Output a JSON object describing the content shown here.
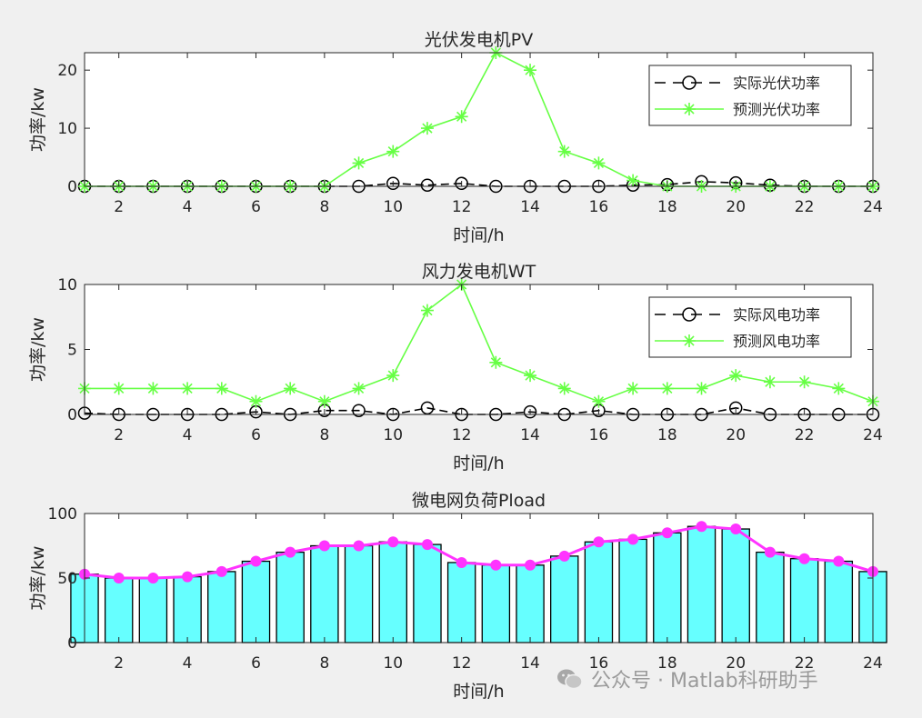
{
  "chart_data": [
    {
      "type": "line",
      "title": "光伏发电机PV",
      "xlabel": "时间/h",
      "ylabel": "功率/kw",
      "xlim": [
        1,
        24
      ],
      "ylim": [
        0,
        23
      ],
      "xticks": [
        2,
        4,
        6,
        8,
        10,
        12,
        14,
        16,
        18,
        20,
        22,
        24
      ],
      "yticks": [
        0,
        10,
        20
      ],
      "legend_position": "top-right",
      "x": [
        1,
        2,
        3,
        4,
        5,
        6,
        7,
        8,
        9,
        10,
        11,
        12,
        13,
        14,
        15,
        16,
        17,
        18,
        19,
        20,
        21,
        22,
        23,
        24
      ],
      "series": [
        {
          "name": "实际光伏功率",
          "color": "#000000",
          "marker": "circle",
          "dash": true,
          "values": [
            0,
            0,
            0,
            0,
            0,
            0,
            0,
            0,
            0,
            0.5,
            0.2,
            0.5,
            0,
            0,
            0,
            0,
            0.2,
            0.3,
            0.8,
            0.6,
            0.2,
            0,
            0,
            0
          ]
        },
        {
          "name": "预测光伏功率",
          "color": "#66ff44",
          "marker": "star",
          "dash": false,
          "values": [
            0,
            0,
            0,
            0,
            0,
            0,
            0,
            0,
            4,
            6,
            10,
            12,
            23,
            20,
            6,
            4,
            1,
            0,
            0,
            0,
            0,
            0,
            0,
            0
          ]
        }
      ]
    },
    {
      "type": "line",
      "title": "风力发电机WT",
      "xlabel": "时间/h",
      "ylabel": "功率/kw",
      "xlim": [
        1,
        24
      ],
      "ylim": [
        0,
        10
      ],
      "xticks": [
        2,
        4,
        6,
        8,
        10,
        12,
        14,
        16,
        18,
        20,
        22,
        24
      ],
      "yticks": [
        0,
        5,
        10
      ],
      "legend_position": "top-right",
      "x": [
        1,
        2,
        3,
        4,
        5,
        6,
        7,
        8,
        9,
        10,
        11,
        12,
        13,
        14,
        15,
        16,
        17,
        18,
        19,
        20,
        21,
        22,
        23,
        24
      ],
      "series": [
        {
          "name": "实际风电功率",
          "color": "#000000",
          "marker": "circle",
          "dash": true,
          "values": [
            0.1,
            0,
            0,
            0,
            0,
            0.2,
            0,
            0.3,
            0.3,
            0,
            0.5,
            0,
            0,
            0.2,
            0,
            0.3,
            0,
            0,
            0,
            0.5,
            0,
            0,
            0,
            0
          ]
        },
        {
          "name": "预测风电功率",
          "color": "#66ff44",
          "marker": "star",
          "dash": false,
          "values": [
            2,
            2,
            2,
            2,
            2,
            1,
            2,
            1,
            2,
            3,
            8,
            10,
            4,
            3,
            2,
            1,
            2,
            2,
            2,
            3,
            2.5,
            2.5,
            2,
            1
          ]
        }
      ]
    },
    {
      "type": "bar",
      "title": "微电网负荷Pload",
      "xlabel": "时间/h",
      "ylabel": "功率/kw",
      "xlim": [
        1,
        24
      ],
      "ylim": [
        0,
        100
      ],
      "xticks": [
        2,
        4,
        6,
        8,
        10,
        12,
        14,
        16,
        18,
        20,
        22,
        24
      ],
      "yticks": [
        0,
        50,
        100
      ],
      "x": [
        1,
        2,
        3,
        4,
        5,
        6,
        7,
        8,
        9,
        10,
        11,
        12,
        13,
        14,
        15,
        16,
        17,
        18,
        19,
        20,
        21,
        22,
        23,
        24
      ],
      "values": [
        53,
        50,
        50,
        51,
        55,
        63,
        70,
        75,
        75,
        78,
        76,
        62,
        60,
        60,
        67,
        78,
        80,
        85,
        90,
        88,
        70,
        65,
        63,
        55
      ],
      "bar_color": "#66ffff",
      "line_color": "#ff33ff"
    }
  ],
  "watermark": {
    "text": "公众号 · Matlab科研助手"
  }
}
